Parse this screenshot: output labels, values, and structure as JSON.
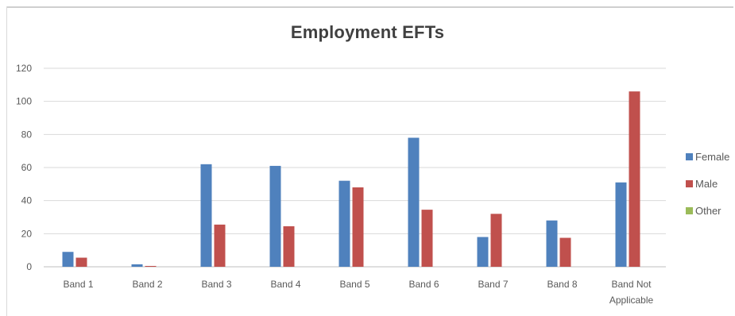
{
  "chart_data": {
    "type": "bar",
    "title": "Employment EFTs",
    "xlabel": "",
    "ylabel": "",
    "categories": [
      "Band 1",
      "Band 2",
      "Band 3",
      "Band 4",
      "Band 5",
      "Band 6",
      "Band 7",
      "Band 8",
      "Band Not Applicable"
    ],
    "category_lines": [
      [
        "Band 1"
      ],
      [
        "Band 2"
      ],
      [
        "Band 3"
      ],
      [
        "Band 4"
      ],
      [
        "Band 5"
      ],
      [
        "Band 6"
      ],
      [
        "Band 7"
      ],
      [
        "Band 8"
      ],
      [
        "Band Not",
        "Applicable"
      ]
    ],
    "series": [
      {
        "name": "Female",
        "color": "#4f81bd",
        "values": [
          9,
          1.5,
          62,
          61,
          52,
          78,
          18,
          28,
          51
        ]
      },
      {
        "name": "Male",
        "color": "#c0504d",
        "values": [
          5.5,
          0.5,
          25.5,
          24.5,
          48,
          34.5,
          32,
          17.5,
          106
        ]
      },
      {
        "name": "Other",
        "color": "#9bbb59",
        "values": [
          0,
          0,
          0,
          0,
          0,
          0,
          0,
          0,
          0
        ]
      }
    ],
    "ylim": [
      0,
      120
    ],
    "yticks": [
      0,
      20,
      40,
      60,
      80,
      100,
      120
    ],
    "grid": true,
    "legend": "right"
  }
}
